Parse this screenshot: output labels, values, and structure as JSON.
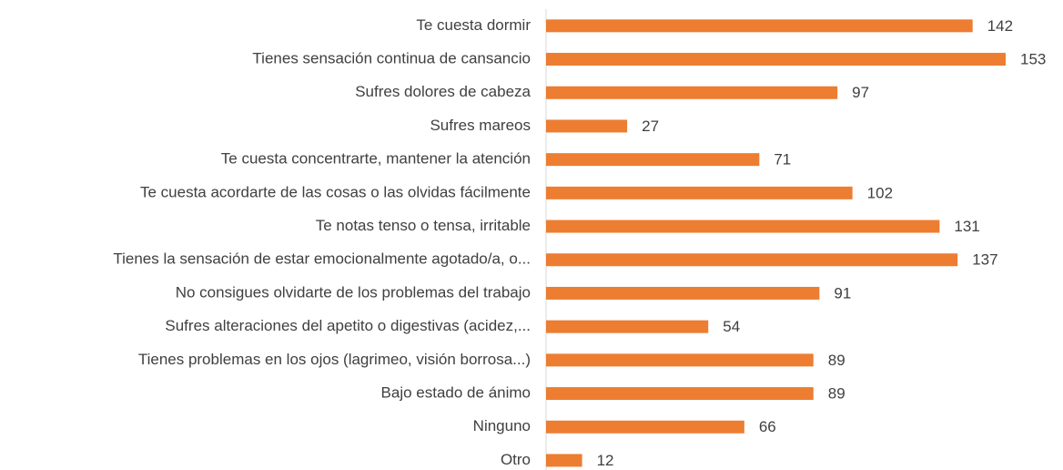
{
  "chart_data": {
    "type": "bar",
    "orientation": "horizontal",
    "color": "#ed7d31",
    "categories": [
      "Te cuesta dormir",
      "Tienes sensación continua de cansancio",
      "Sufres dolores de cabeza",
      "Sufres mareos",
      "Te cuesta concentrarte, mantener la atención",
      "Te cuesta acordarte de las cosas o las olvidas fácilmente",
      "Te notas tenso o tensa, irritable",
      "Tienes la sensación de estar emocionalmente agotado/a, o...",
      "No consigues olvidarte de los problemas del trabajo",
      "Sufres alteraciones del apetito o digestivas (acidez,...",
      "Tienes problemas en los ojos (lagrimeo, visión borrosa...)",
      "Bajo estado de ánimo",
      "Ninguno",
      "Otro"
    ],
    "values": [
      142,
      153,
      97,
      27,
      71,
      102,
      131,
      137,
      91,
      54,
      89,
      89,
      66,
      12
    ]
  }
}
